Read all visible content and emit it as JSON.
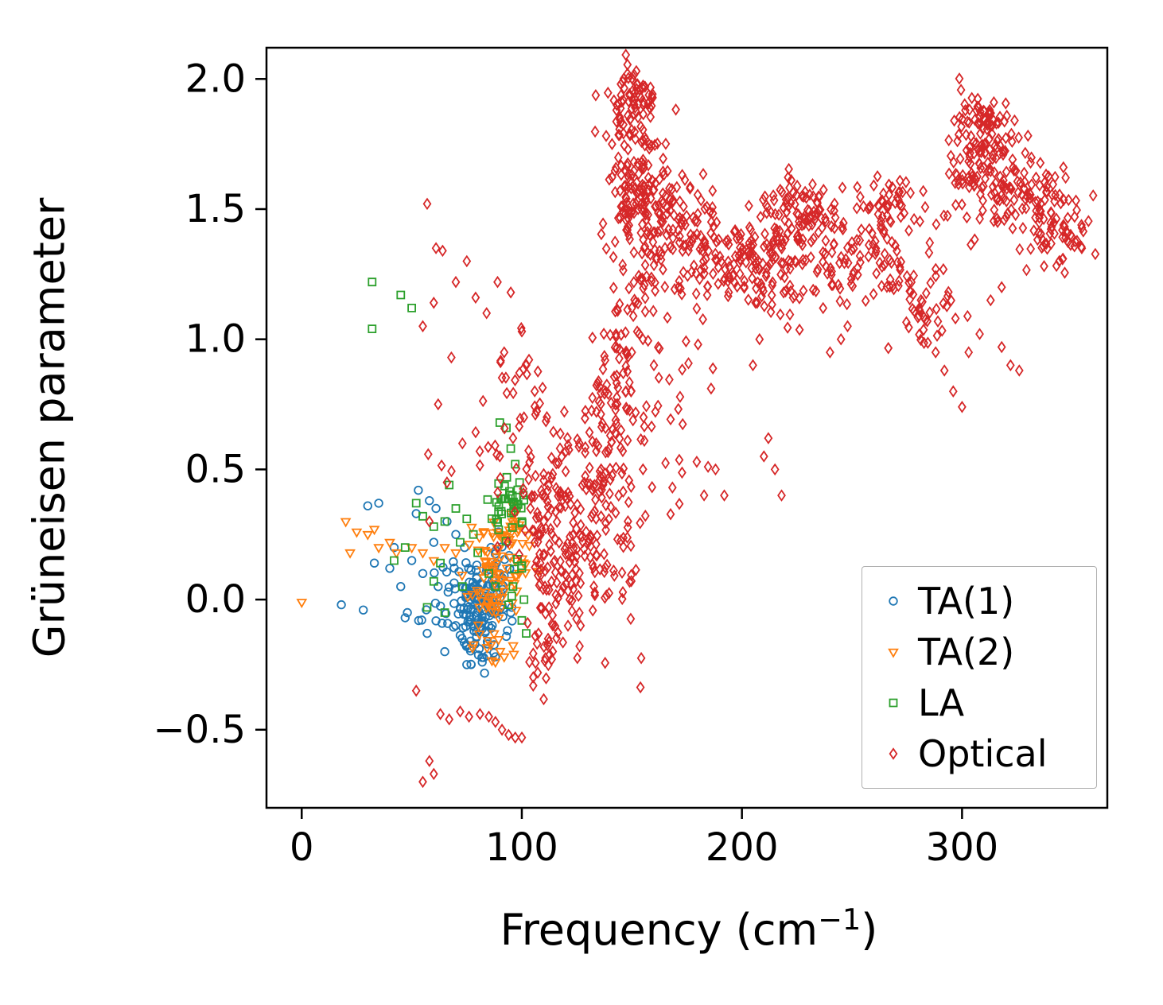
{
  "figure": {
    "ylabel": "Grüneisen parameter",
    "xlabel_prefix": "Frequency (cm",
    "xlabel_sup": "−1",
    "xlabel_suffix": ")",
    "xlim": [
      -16,
      366
    ],
    "ylim": [
      -0.8,
      2.12
    ],
    "x_ticks": [
      {
        "value": 0,
        "label": "0"
      },
      {
        "value": 100,
        "label": "100"
      },
      {
        "value": 200,
        "label": "200"
      },
      {
        "value": 300,
        "label": "300"
      }
    ],
    "y_ticks": [
      {
        "value": -0.5,
        "label": "−0.5"
      },
      {
        "value": 0.0,
        "label": "0.0"
      },
      {
        "value": 0.5,
        "label": "0.5"
      },
      {
        "value": 1.0,
        "label": "1.0"
      },
      {
        "value": 1.5,
        "label": "1.5"
      },
      {
        "value": 2.0,
        "label": "2.0"
      }
    ],
    "axis_color": "#000000",
    "background": "#ffffff"
  },
  "legend": {
    "items": [
      {
        "label": "TA(1)",
        "marker": "circle",
        "color": "#1f77b4"
      },
      {
        "label": "TA(2)",
        "marker": "triangle_down",
        "color": "#ff7f0e"
      },
      {
        "label": "LA",
        "marker": "square",
        "color": "#2ca02c"
      },
      {
        "label": "Optical",
        "marker": "diamond",
        "color": "#d62728"
      }
    ]
  },
  "chart_data": {
    "type": "scatter",
    "title": "",
    "xlabel": "Frequency (cm^-1)",
    "ylabel": "Grüneisen parameter",
    "xlim": [
      -16,
      366
    ],
    "ylim": [
      -0.8,
      2.12
    ],
    "grid": false,
    "legend_position": "lower right",
    "seed": 42,
    "cluster_format": [
      "n_points",
      "center_x",
      "center_y",
      "sigma_x",
      "sigma_y"
    ],
    "series": [
      {
        "name": "TA(1)",
        "marker": "circle",
        "color": "#1f77b4",
        "points": [
          [
            18,
            -0.02
          ],
          [
            28,
            -0.04
          ],
          [
            30,
            0.36
          ],
          [
            35,
            0.37
          ],
          [
            33,
            0.14
          ],
          [
            40,
            0.12
          ],
          [
            42,
            0.2
          ],
          [
            45,
            0.05
          ],
          [
            47,
            -0.07
          ],
          [
            50,
            0.15
          ],
          [
            52,
            0.33
          ],
          [
            53,
            0.42
          ],
          [
            55,
            0.1
          ],
          [
            57,
            -0.13
          ],
          [
            60,
            0.22
          ],
          [
            62,
            0.05
          ],
          [
            65,
            -0.2
          ],
          [
            48,
            -0.05
          ],
          [
            58,
            0.38
          ],
          [
            61,
            0.35
          ],
          [
            66,
            0.3
          ],
          [
            70,
            0.25
          ],
          [
            74,
            0.2
          ],
          [
            86,
            0.2
          ],
          [
            90,
            0.1
          ],
          [
            95,
            -0.05
          ],
          [
            75,
            -0.25
          ],
          [
            82,
            -0.24
          ],
          [
            88,
            -0.22
          ]
        ],
        "clusters": [
          [
            110,
            81,
            -0.02,
            6,
            0.07
          ],
          [
            30,
            69,
            0.03,
            7,
            0.1
          ],
          [
            18,
            80,
            -0.18,
            7,
            0.04
          ],
          [
            14,
            92,
            0.16,
            4,
            0.05
          ]
        ]
      },
      {
        "name": "TA(2)",
        "marker": "triangle_down",
        "color": "#ff7f0e",
        "points": [
          [
            0,
            -0.01
          ],
          [
            20,
            0.3
          ],
          [
            22,
            0.18
          ],
          [
            25,
            0.26
          ],
          [
            30,
            0.25
          ],
          [
            33,
            0.27
          ],
          [
            35,
            0.2
          ],
          [
            40,
            0.22
          ],
          [
            43,
            0.18
          ],
          [
            50,
            0.2
          ],
          [
            55,
            0.18
          ],
          [
            60,
            0.15
          ],
          [
            65,
            0.2
          ],
          [
            70,
            0.18
          ],
          [
            92,
            -0.22
          ],
          [
            88,
            -0.24
          ]
        ],
        "clusters": [
          [
            80,
            88,
            0.1,
            7,
            0.09
          ],
          [
            25,
            95,
            0.25,
            5,
            0.05
          ],
          [
            12,
            85,
            -0.18,
            5,
            0.04
          ]
        ]
      },
      {
        "name": "LA",
        "marker": "square",
        "color": "#2ca02c",
        "points": [
          [
            32,
            1.22
          ],
          [
            45,
            1.17
          ],
          [
            50,
            1.12
          ],
          [
            32,
            1.04
          ],
          [
            52,
            0.37
          ],
          [
            55,
            0.32
          ],
          [
            60,
            0.28
          ],
          [
            63,
            0.14
          ],
          [
            65,
            0.3
          ],
          [
            67,
            0.44
          ],
          [
            70,
            0.35
          ],
          [
            72,
            0.22
          ],
          [
            75,
            0.31
          ],
          [
            78,
            0.25
          ],
          [
            60,
            0.07
          ],
          [
            57,
            -0.03
          ],
          [
            65,
            -0.05
          ],
          [
            73,
            0.05
          ],
          [
            80,
            0.18
          ],
          [
            85,
            0.1
          ],
          [
            88,
            0.05
          ],
          [
            90,
            0.68
          ],
          [
            93,
            0.66
          ],
          [
            95,
            0.58
          ],
          [
            97,
            0.52
          ],
          [
            99,
            0.45
          ],
          [
            100,
            0.3
          ],
          [
            100,
            0.12
          ],
          [
            101,
            0.0
          ],
          [
            100,
            -0.08
          ],
          [
            102,
            -0.13
          ],
          [
            96,
            0.05
          ],
          [
            94,
            -0.02
          ],
          [
            47,
            0.2
          ],
          [
            42,
            0.15
          ]
        ],
        "clusters": [
          [
            30,
            93,
            0.37,
            4,
            0.05
          ],
          [
            10,
            97,
            0.15,
            3,
            0.12
          ]
        ]
      },
      {
        "name": "Optical",
        "marker": "diamond",
        "color": "#d62728",
        "points": [
          [
            148,
            2.02
          ],
          [
            152,
            2.03
          ],
          [
            145,
            1.98
          ],
          [
            143,
            1.88
          ],
          [
            156,
            1.97
          ],
          [
            57,
            1.52
          ],
          [
            61,
            1.35
          ],
          [
            64,
            1.34
          ],
          [
            55,
            1.05
          ],
          [
            60,
            1.14
          ],
          [
            70,
            1.22
          ],
          [
            75,
            1.3
          ],
          [
            79,
            1.16
          ],
          [
            84,
            1.1
          ],
          [
            89,
            1.22
          ],
          [
            95,
            1.18
          ],
          [
            100,
            1.03
          ],
          [
            92,
            0.95
          ],
          [
            68,
            0.93
          ],
          [
            62,
            0.75
          ],
          [
            73,
            0.6
          ],
          [
            66,
            0.45
          ],
          [
            58,
            0.3
          ],
          [
            96,
            0.62
          ],
          [
            101,
            0.7
          ],
          [
            90,
            0.55
          ],
          [
            212,
            0.62
          ],
          [
            215,
            0.5
          ],
          [
            218,
            0.4
          ],
          [
            210,
            0.55
          ],
          [
            205,
            0.9
          ],
          [
            208,
            1.0
          ],
          [
            188,
            0.5
          ],
          [
            192,
            0.4
          ],
          [
            240,
            0.95
          ],
          [
            245,
            1.0
          ],
          [
            248,
            1.05
          ],
          [
            288,
            0.95
          ],
          [
            292,
            0.88
          ],
          [
            296,
            0.8
          ],
          [
            300,
            0.74
          ],
          [
            303,
            0.95
          ],
          [
            308,
            1.02
          ],
          [
            297,
            1.08
          ],
          [
            313,
            1.15
          ],
          [
            318,
            1.2
          ],
          [
            322,
            0.9
          ],
          [
            326,
            0.88
          ],
          [
            318,
            0.97
          ],
          [
            52,
            -0.35
          ],
          [
            63,
            -0.44
          ],
          [
            67,
            -0.46
          ],
          [
            72,
            -0.43
          ],
          [
            76,
            -0.45
          ],
          [
            81,
            -0.44
          ],
          [
            85,
            -0.45
          ],
          [
            88,
            -0.47
          ],
          [
            91,
            -0.5
          ],
          [
            94,
            -0.52
          ],
          [
            97,
            -0.53
          ],
          [
            100,
            -0.53
          ],
          [
            58,
            -0.62
          ],
          [
            55,
            -0.7
          ],
          [
            60,
            -0.67
          ],
          [
            150,
            0.95
          ],
          [
            155,
            1.0
          ],
          [
            160,
            0.9
          ]
        ],
        "clusters": [
          [
            45,
            150,
            1.93,
            5,
            0.06
          ],
          [
            160,
            151,
            1.6,
            7,
            0.17
          ],
          [
            90,
            167,
            1.46,
            9,
            0.12
          ],
          [
            130,
            196,
            1.3,
            16,
            0.11
          ],
          [
            110,
            225,
            1.33,
            14,
            0.12
          ],
          [
            55,
            228,
            1.5,
            7,
            0.07
          ],
          [
            75,
            262,
            1.35,
            10,
            0.12
          ],
          [
            30,
            270,
            1.52,
            6,
            0.06
          ],
          [
            45,
            283,
            1.13,
            9,
            0.09
          ],
          [
            120,
            309,
            1.66,
            9,
            0.12
          ],
          [
            40,
            310,
            1.83,
            5,
            0.05
          ],
          [
            60,
            330,
            1.55,
            8,
            0.08
          ],
          [
            65,
            345,
            1.42,
            8,
            0.07
          ],
          [
            200,
            126,
            0.28,
            13,
            0.22
          ],
          [
            55,
            113,
            0.08,
            5,
            0.16
          ],
          [
            50,
            138,
            0.6,
            8,
            0.15
          ],
          [
            28,
            143,
            0.8,
            6,
            0.1
          ],
          [
            20,
            175,
            0.75,
            11,
            0.18
          ],
          [
            12,
            108,
            -0.27,
            4,
            0.06
          ],
          [
            12,
            83,
            0.6,
            12,
            0.12
          ],
          [
            22,
            158,
            1.05,
            8,
            0.12
          ],
          [
            14,
            98,
            0.85,
            6,
            0.12
          ],
          [
            25,
            146,
            1.05,
            4,
            0.12
          ],
          [
            30,
            106,
            0.5,
            4,
            0.2
          ]
        ]
      }
    ]
  }
}
